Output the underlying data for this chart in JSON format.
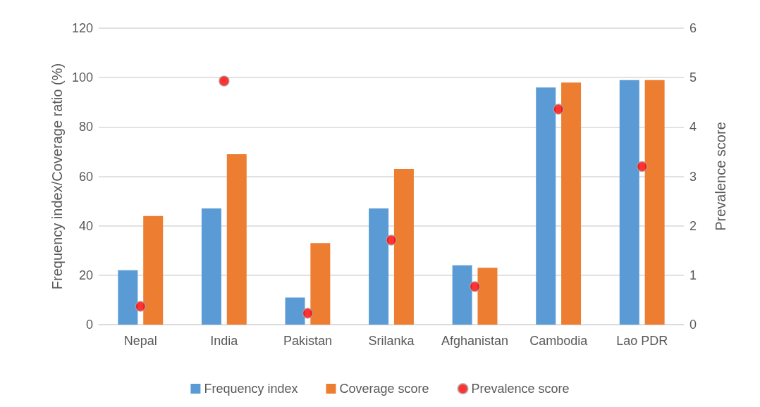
{
  "chart_data": {
    "type": "bar",
    "categories": [
      "Nepal",
      "India",
      "Pakistan",
      "Srilanka",
      "Afghanistan",
      "Cambodia",
      "Lao PDR"
    ],
    "series": [
      {
        "name": "Frequency index",
        "color": "#5b9bd5",
        "values": [
          22,
          47,
          11,
          47,
          24,
          96,
          99
        ]
      },
      {
        "name": "Coverage score",
        "color": "#ed7d31",
        "values": [
          44,
          69,
          33,
          63,
          23,
          98,
          99
        ]
      },
      {
        "name": "Prevalence score",
        "type": "scatter",
        "axis": "y2",
        "color": "#ff0000",
        "values": [
          0.37,
          4.93,
          0.23,
          1.71,
          0.77,
          4.36,
          3.2
        ]
      }
    ],
    "ylabel": "Frequency index/Coverage ratio (%)",
    "y2label": "Prevalence score",
    "ylim": [
      0,
      120
    ],
    "yticks": [
      0,
      20,
      40,
      60,
      80,
      100,
      120
    ],
    "y2lim": [
      0,
      6
    ],
    "y2ticks": [
      0,
      1,
      2,
      3,
      4,
      5,
      6
    ],
    "grid": "y",
    "legend": "bottom",
    "marker": "circle"
  }
}
